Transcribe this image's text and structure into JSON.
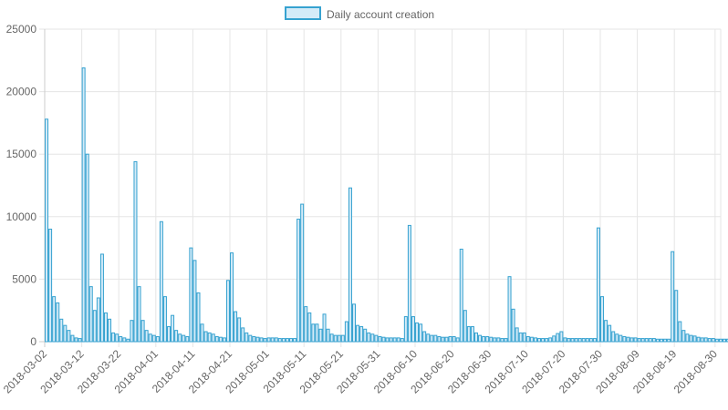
{
  "chart_data": {
    "type": "bar",
    "title": "",
    "xlabel": "",
    "ylabel": "",
    "legend": {
      "position": "top",
      "entries": [
        "Daily account creation"
      ]
    },
    "grid": true,
    "ylim": [
      0,
      25000
    ],
    "y_ticks": [
      0,
      5000,
      10000,
      15000,
      20000,
      25000
    ],
    "x_tick_labels": [
      "2018-03-02",
      "2018-03-12",
      "2018-03-22",
      "2018-04-01",
      "2018-04-11",
      "2018-04-21",
      "2018-05-01",
      "2018-05-11",
      "2018-05-21",
      "2018-05-31",
      "2018-06-10",
      "2018-06-20",
      "2018-06-30",
      "2018-07-10",
      "2018-07-20",
      "2018-07-30",
      "2018-08-09",
      "2018-08-19",
      "2018-08-30"
    ],
    "colors": {
      "bar_fill": "#d4ebf8",
      "bar_border": "#36a2d0",
      "grid": "#e5e5e5",
      "axis": "#cccccc"
    },
    "start_date": "2018-03-02",
    "series": [
      {
        "name": "Daily account creation",
        "values": [
          17800,
          9000,
          3600,
          3100,
          1800,
          1300,
          900,
          500,
          300,
          250,
          21900,
          15000,
          4400,
          2500,
          3500,
          7000,
          2300,
          1800,
          700,
          600,
          400,
          300,
          200,
          1700,
          14400,
          4400,
          1700,
          900,
          600,
          500,
          400,
          9600,
          3600,
          1200,
          2100,
          900,
          600,
          500,
          400,
          7500,
          6500,
          3900,
          1400,
          800,
          700,
          600,
          400,
          350,
          300,
          4900,
          7100,
          2400,
          1900,
          1100,
          700,
          500,
          400,
          350,
          300,
          250,
          300,
          300,
          300,
          250,
          250,
          250,
          250,
          250,
          9800,
          11000,
          2800,
          2300,
          1400,
          1400,
          1000,
          2200,
          1000,
          600,
          500,
          500,
          500,
          1600,
          12300,
          3000,
          1300,
          1200,
          1000,
          700,
          600,
          500,
          400,
          350,
          300,
          300,
          300,
          300,
          250,
          2000,
          9300,
          2000,
          1500,
          1400,
          800,
          600,
          500,
          500,
          400,
          350,
          350,
          400,
          400,
          300,
          7400,
          2500,
          1200,
          1200,
          700,
          500,
          400,
          400,
          350,
          300,
          300,
          250,
          250,
          5200,
          2600,
          1100,
          700,
          700,
          400,
          350,
          300,
          250,
          250,
          250,
          300,
          450,
          650,
          800,
          300,
          250,
          250,
          250,
          250,
          250,
          250,
          250,
          250,
          9100,
          3600,
          1700,
          1300,
          800,
          600,
          500,
          400,
          350,
          300,
          300,
          250,
          250,
          250,
          250,
          250,
          200,
          200,
          200,
          200,
          7200,
          4100,
          1600,
          900,
          600,
          500,
          450,
          350,
          300,
          300,
          250,
          250,
          200,
          200,
          200,
          200,
          200,
          200,
          200
        ]
      }
    ]
  }
}
